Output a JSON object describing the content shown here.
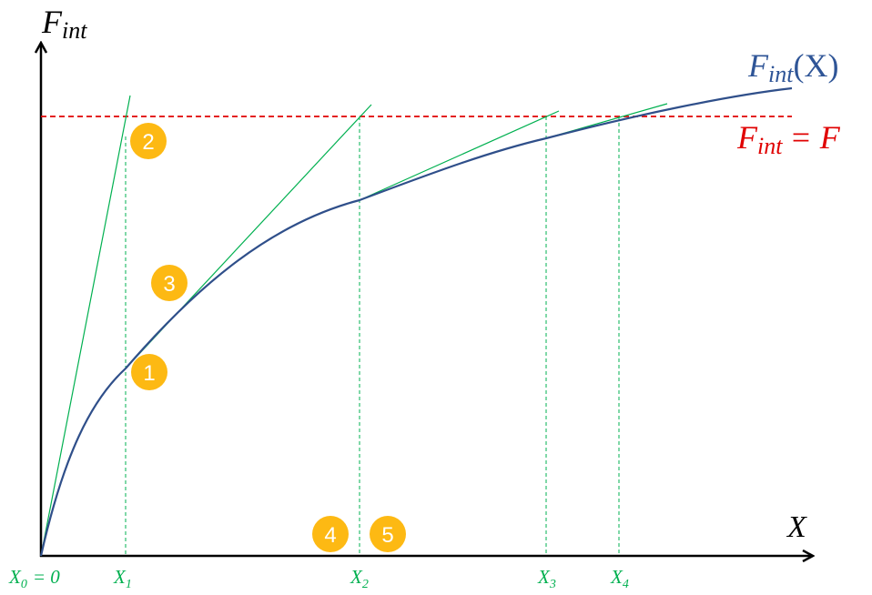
{
  "axes": {
    "y_label": {
      "base": "F",
      "sub": "int"
    },
    "x_label": "X"
  },
  "curve_label": {
    "base": "F",
    "sub": "int",
    "arg": "(X)"
  },
  "target_label": {
    "base": "F",
    "sub": "int",
    "rhs": "= F"
  },
  "x_marks": [
    {
      "base": "X",
      "sub": "0",
      "rhs": "= 0"
    },
    {
      "base": "X",
      "sub": "1"
    },
    {
      "base": "X",
      "sub": "2"
    },
    {
      "base": "X",
      "sub": "3"
    },
    {
      "base": "X",
      "sub": "4"
    }
  ],
  "steps": [
    "1",
    "2",
    "3",
    "4",
    "5"
  ]
}
